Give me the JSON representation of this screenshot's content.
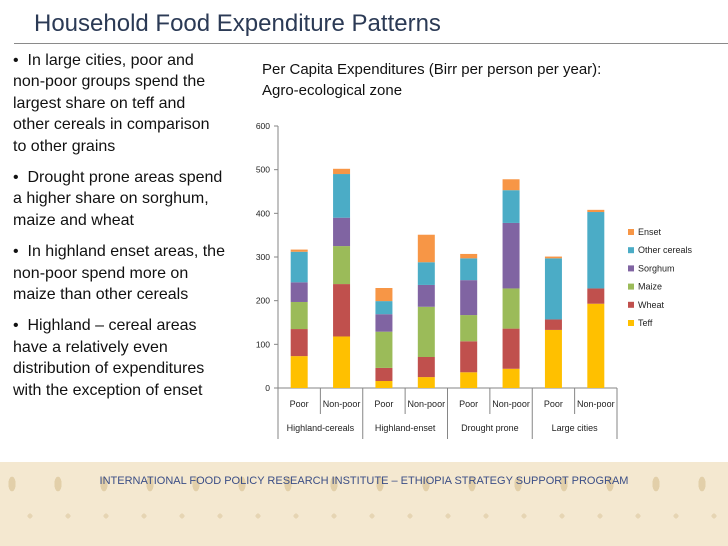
{
  "slide": {
    "title": "Household Food Expenditure Patterns",
    "bullets": [
      "In large cities, poor and non-poor groups spend the largest share on teff and other cereals in comparison to other grains",
      "Drought prone areas spend a higher share on sorghum, maize and wheat",
      "In highland enset areas, the non-poor spend more on maize than other cereals",
      "Highland – cereal areas have a relatively even distribution of expenditures with the exception of enset"
    ],
    "bullet_glyph": "•",
    "chart_heading_line1": "Per Capita Expenditures (Birr per person per year):",
    "chart_heading_line2": "Agro-ecological zone",
    "footer": "INTERNATIONAL FOOD POLICY RESEARCH INSTITUTE – ETHIOPIA STRATEGY SUPPORT PROGRAM"
  },
  "chart_data": {
    "type": "bar",
    "stacked": true,
    "title": "Per Capita Expenditures (Birr per person per year): Agro-ecological zone",
    "xlabel": "",
    "ylabel": "",
    "ylim": [
      0,
      600
    ],
    "yticks": [
      0,
      100,
      200,
      300,
      400,
      500,
      600
    ],
    "grid": false,
    "legend_position": "right",
    "categories": [
      "Poor",
      "Non-poor",
      "Poor",
      "Non-poor",
      "Poor",
      "Non-poor",
      "Poor",
      "Non-poor"
    ],
    "groups": [
      {
        "label": "Highland-cereals",
        "span": 2
      },
      {
        "label": "Highland-enset",
        "span": 2
      },
      {
        "label": "Drought prone",
        "span": 2
      },
      {
        "label": "Large cities",
        "span": 2
      }
    ],
    "series": [
      {
        "name": "Teff",
        "color": "#ffc000",
        "values": [
          73,
          118,
          16,
          25,
          36,
          44,
          133,
          193
        ]
      },
      {
        "name": "Wheat",
        "color": "#c0504d",
        "values": [
          62,
          120,
          30,
          46,
          71,
          92,
          24,
          35
        ]
      },
      {
        "name": "Maize",
        "color": "#9bbb59",
        "values": [
          62,
          87,
          83,
          115,
          60,
          92,
          0,
          0
        ]
      },
      {
        "name": "Sorghum",
        "color": "#8064a2",
        "values": [
          45,
          65,
          40,
          50,
          80,
          150,
          0,
          0
        ]
      },
      {
        "name": "Other cereals",
        "color": "#4bacc6",
        "values": [
          70,
          100,
          30,
          52,
          50,
          75,
          140,
          175
        ]
      },
      {
        "name": "Enset",
        "color": "#f79646",
        "values": [
          5,
          12,
          30,
          63,
          10,
          25,
          4,
          5
        ]
      }
    ]
  }
}
